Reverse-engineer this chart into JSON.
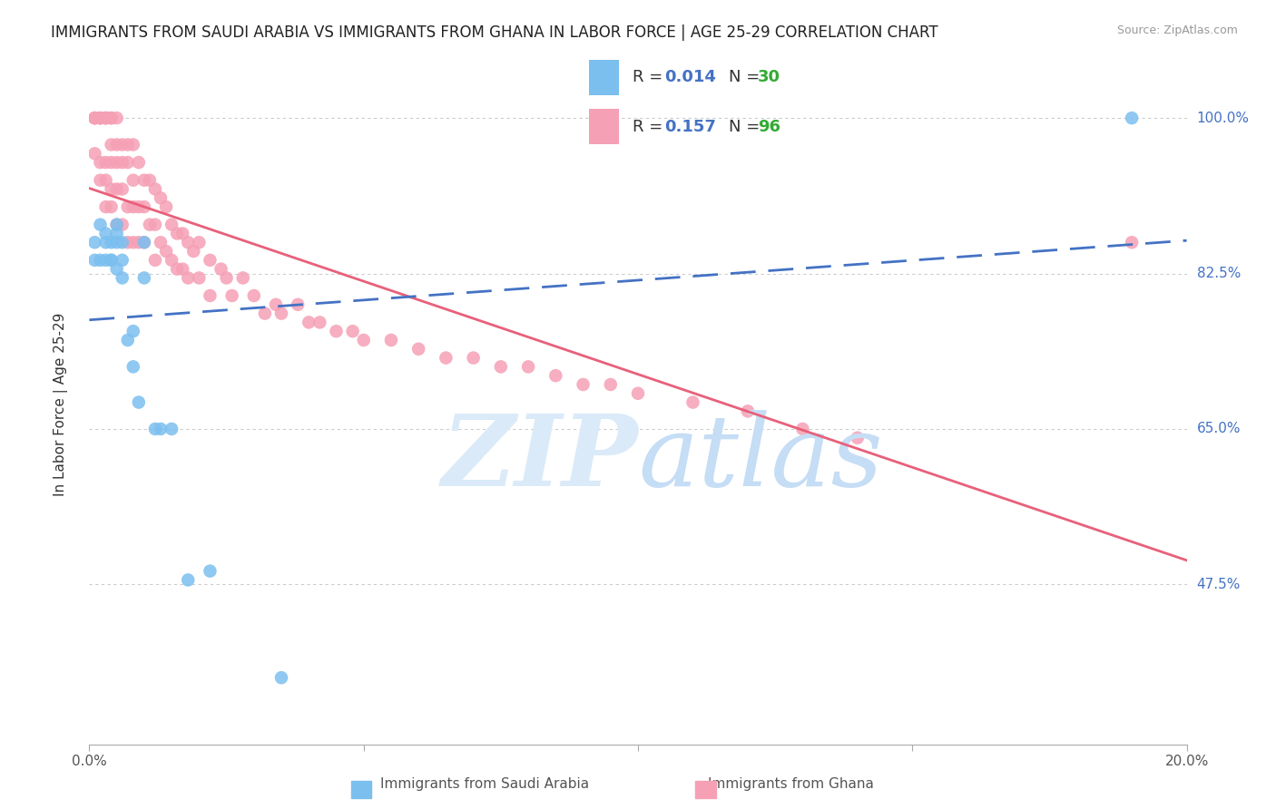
{
  "title": "IMMIGRANTS FROM SAUDI ARABIA VS IMMIGRANTS FROM GHANA IN LABOR FORCE | AGE 25-29 CORRELATION CHART",
  "source": "Source: ZipAtlas.com",
  "ylabel": "In Labor Force | Age 25-29",
  "ytick_labels": [
    "100.0%",
    "82.5%",
    "65.0%",
    "47.5%"
  ],
  "ytick_values": [
    1.0,
    0.825,
    0.65,
    0.475
  ],
  "xmin": 0.0,
  "xmax": 0.2,
  "ymin": 0.295,
  "ymax": 1.06,
  "saudi_color": "#7bbfef",
  "ghana_color": "#f5a0b5",
  "saudi_line_color": "#4472c4",
  "ghana_line_color": "#e8607a",
  "watermark_zip_color": "#daeaf8",
  "watermark_atlas_color": "#c5ddf5",
  "saudi_x": [
    0.001,
    0.001,
    0.002,
    0.002,
    0.003,
    0.003,
    0.003,
    0.004,
    0.004,
    0.004,
    0.005,
    0.005,
    0.005,
    0.005,
    0.006,
    0.006,
    0.006,
    0.007,
    0.008,
    0.008,
    0.009,
    0.01,
    0.01,
    0.012,
    0.013,
    0.015,
    0.018,
    0.022,
    0.035,
    0.19
  ],
  "saudi_y": [
    0.86,
    0.84,
    0.88,
    0.84,
    0.87,
    0.86,
    0.84,
    0.84,
    0.86,
    0.84,
    0.88,
    0.87,
    0.86,
    0.83,
    0.82,
    0.86,
    0.84,
    0.75,
    0.76,
    0.72,
    0.68,
    0.86,
    0.82,
    0.65,
    0.65,
    0.65,
    0.48,
    0.49,
    0.37,
    1.0
  ],
  "ghana_x": [
    0.001,
    0.001,
    0.001,
    0.001,
    0.002,
    0.002,
    0.002,
    0.002,
    0.002,
    0.003,
    0.003,
    0.003,
    0.003,
    0.003,
    0.003,
    0.004,
    0.004,
    0.004,
    0.004,
    0.004,
    0.004,
    0.005,
    0.005,
    0.005,
    0.005,
    0.005,
    0.006,
    0.006,
    0.006,
    0.006,
    0.007,
    0.007,
    0.007,
    0.007,
    0.008,
    0.008,
    0.008,
    0.008,
    0.009,
    0.009,
    0.009,
    0.01,
    0.01,
    0.01,
    0.011,
    0.011,
    0.012,
    0.012,
    0.012,
    0.013,
    0.013,
    0.014,
    0.014,
    0.015,
    0.015,
    0.016,
    0.016,
    0.017,
    0.017,
    0.018,
    0.018,
    0.019,
    0.02,
    0.02,
    0.022,
    0.022,
    0.024,
    0.025,
    0.026,
    0.028,
    0.03,
    0.032,
    0.034,
    0.035,
    0.038,
    0.04,
    0.042,
    0.045,
    0.048,
    0.05,
    0.055,
    0.06,
    0.065,
    0.07,
    0.075,
    0.08,
    0.085,
    0.09,
    0.095,
    0.1,
    0.11,
    0.12,
    0.13,
    0.14,
    0.19
  ],
  "ghana_y": [
    1.0,
    1.0,
    1.0,
    0.96,
    1.0,
    1.0,
    1.0,
    0.95,
    0.93,
    1.0,
    1.0,
    1.0,
    0.95,
    0.93,
    0.9,
    1.0,
    1.0,
    0.97,
    0.95,
    0.92,
    0.9,
    1.0,
    0.97,
    0.95,
    0.92,
    0.88,
    0.97,
    0.95,
    0.92,
    0.88,
    0.97,
    0.95,
    0.9,
    0.86,
    0.97,
    0.93,
    0.9,
    0.86,
    0.95,
    0.9,
    0.86,
    0.93,
    0.9,
    0.86,
    0.93,
    0.88,
    0.92,
    0.88,
    0.84,
    0.91,
    0.86,
    0.9,
    0.85,
    0.88,
    0.84,
    0.87,
    0.83,
    0.87,
    0.83,
    0.86,
    0.82,
    0.85,
    0.86,
    0.82,
    0.84,
    0.8,
    0.83,
    0.82,
    0.8,
    0.82,
    0.8,
    0.78,
    0.79,
    0.78,
    0.79,
    0.77,
    0.77,
    0.76,
    0.76,
    0.75,
    0.75,
    0.74,
    0.73,
    0.73,
    0.72,
    0.72,
    0.71,
    0.7,
    0.7,
    0.69,
    0.68,
    0.67,
    0.65,
    0.64,
    0.86
  ]
}
